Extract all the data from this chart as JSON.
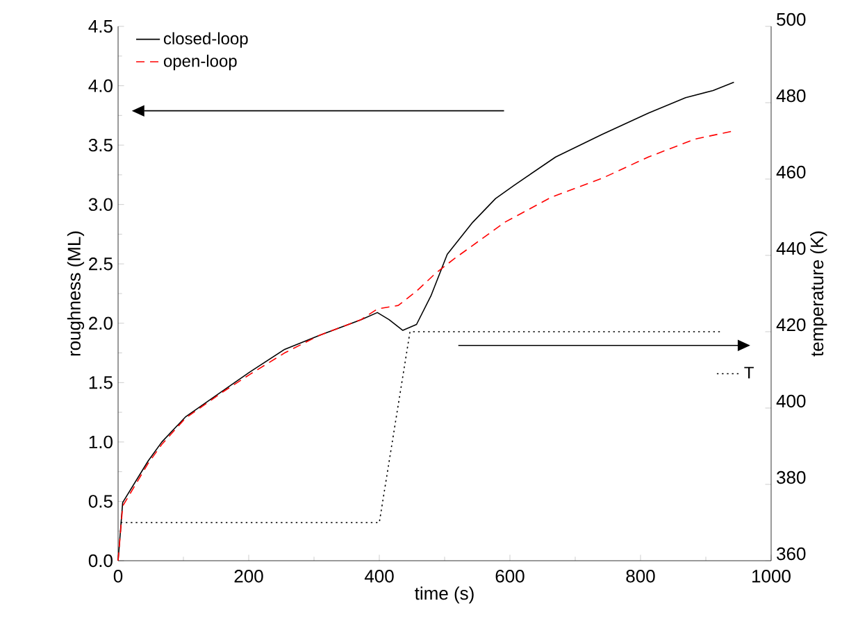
{
  "chart_data": {
    "type": "line",
    "xlabel": "time (s)",
    "ylabel": "roughness (ML)",
    "y2label": "temperature (K)",
    "xlim": [
      0,
      1000
    ],
    "xticks": [
      0,
      200,
      400,
      600,
      800,
      1000
    ],
    "ylim": [
      0,
      4.5
    ],
    "yticks": [
      {
        "value": 0,
        "label": "0.0"
      },
      {
        "value": 0.5,
        "label": "0.5"
      },
      {
        "value": 1,
        "label": "1.0"
      },
      {
        "value": 1.5,
        "label": "1.5"
      },
      {
        "value": 2,
        "label": "2.0"
      },
      {
        "value": 2.5,
        "label": "2.5"
      },
      {
        "value": 3,
        "label": "3.0"
      },
      {
        "value": 3.5,
        "label": "3.5"
      },
      {
        "value": 4,
        "label": "4.0"
      },
      {
        "value": 4.5,
        "label": "4.5"
      }
    ],
    "y2lim": [
      360,
      500
    ],
    "y2ticks": [
      360,
      380,
      400,
      420,
      440,
      460,
      480,
      500
    ],
    "legend": "top left",
    "grid": false,
    "marker": "none",
    "series": [
      {
        "name": "closed-loop",
        "color": "#000000",
        "line_style": "solid",
        "x": [
          0,
          7,
          46,
          67,
          103,
          160,
          202,
          255,
          309,
          372,
          397,
          415,
          436,
          457,
          479,
          504,
          543,
          578,
          606,
          670,
          741,
          812,
          869,
          911,
          943
        ],
        "values": [
          0,
          0.49,
          0.84,
          1.0,
          1.21,
          1.43,
          1.59,
          1.78,
          1.9,
          2.03,
          2.09,
          2.03,
          1.94,
          1.99,
          2.23,
          2.58,
          2.85,
          3.05,
          3.16,
          3.4,
          3.59,
          3.77,
          3.9,
          3.96,
          4.03
        ]
      },
      {
        "name": "open-loop",
        "color": "#ff0000",
        "line_style": "dashed",
        "x": [
          0,
          7,
          46,
          67,
          103,
          160,
          202,
          255,
          309,
          372,
          397,
          429,
          457,
          486,
          514,
          592,
          663,
          741,
          812,
          883,
          943
        ],
        "values": [
          0,
          0.46,
          0.82,
          0.98,
          1.2,
          1.42,
          1.57,
          1.75,
          1.9,
          2.03,
          2.12,
          2.15,
          2.27,
          2.42,
          2.54,
          2.85,
          3.06,
          3.22,
          3.4,
          3.55,
          3.62
        ]
      },
      {
        "name": "T",
        "color": "#000000",
        "line_style": "dotted",
        "axis": "y2",
        "x": [
          4,
          400,
          447,
          926
        ],
        "values": [
          370,
          370,
          420,
          420
        ]
      }
    ]
  }
}
